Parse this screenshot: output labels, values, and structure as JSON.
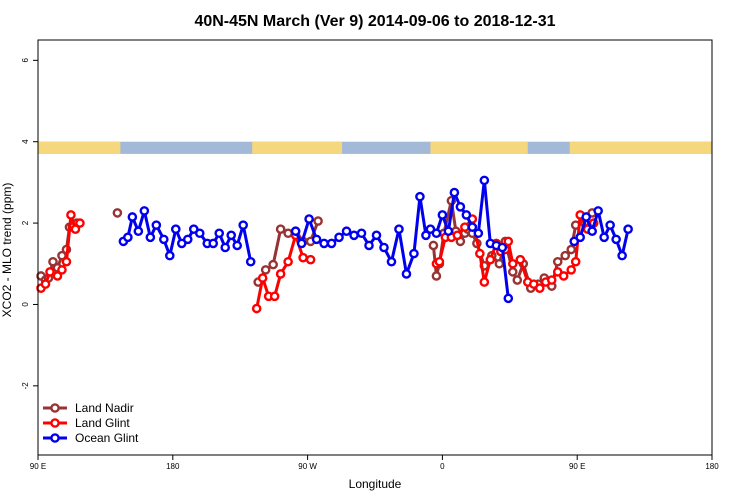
{
  "chart_data": {
    "type": "line",
    "title": "40N-45N March (Ver 9)   2014-09-06 to 2018-12-31",
    "xlabel": "Longitude",
    "ylabel": "XCO2 - MLO trend (ppm)",
    "xlim": [
      90,
      540
    ],
    "ylim": [
      -3.7,
      6.5
    ],
    "x_ticks": [
      {
        "value": 90,
        "label": "90 E"
      },
      {
        "value": 180,
        "label": "180"
      },
      {
        "value": 270,
        "label": "90 W"
      },
      {
        "value": 360,
        "label": "0"
      },
      {
        "value": 450,
        "label": "90 E"
      },
      {
        "value": 540,
        "label": "180"
      }
    ],
    "y_ticks": [
      {
        "value": -2,
        "label": "-2"
      },
      {
        "value": 0,
        "label": "0"
      },
      {
        "value": 2,
        "label": "2"
      },
      {
        "value": 4,
        "label": "4"
      },
      {
        "value": 6,
        "label": "6"
      }
    ],
    "land_ocean_bar": {
      "y_range": [
        3.7,
        4.0
      ],
      "ocean_color": "#a3b9d8",
      "land_color": "#f5d77e",
      "land_segments": [
        [
          90,
          145
        ],
        [
          233,
          293
        ],
        [
          352,
          417
        ],
        [
          445,
          540
        ]
      ]
    },
    "legend_position": "bottom-left",
    "series": [
      {
        "name": "Land Nadir",
        "color": "#993333",
        "points": [
          [
            92,
            0.7
          ],
          [
            95,
            0.6
          ],
          [
            97,
            0.65
          ],
          [
            100,
            1.05
          ],
          [
            103,
            0.9
          ],
          [
            106,
            1.2
          ],
          [
            109,
            1.35
          ],
          [
            111,
            1.9
          ],
          [
            113,
            1.9
          ],
          [
            116,
            2.0
          ],
          [
            143,
            2.25
          ],
          [
            237,
            0.55
          ],
          [
            242,
            0.85
          ],
          [
            247,
            0.98
          ],
          [
            252,
            1.85
          ],
          [
            257,
            1.75
          ],
          [
            262,
            1.8
          ],
          [
            267,
            1.55
          ],
          [
            272,
            1.55
          ],
          [
            277,
            2.05
          ],
          [
            354,
            1.45
          ],
          [
            356,
            0.7
          ],
          [
            358,
            1.0
          ],
          [
            361,
            1.75
          ],
          [
            366,
            2.55
          ],
          [
            369,
            1.8
          ],
          [
            372,
            1.55
          ],
          [
            375,
            1.75
          ],
          [
            377,
            1.85
          ],
          [
            380,
            1.75
          ],
          [
            383,
            1.5
          ],
          [
            388,
            0.95
          ],
          [
            393,
            1.2
          ],
          [
            398,
            1.0
          ],
          [
            402,
            1.55
          ],
          [
            407,
            0.8
          ],
          [
            410,
            0.6
          ],
          [
            414,
            1.0
          ],
          [
            419,
            0.4
          ],
          [
            424,
            0.5
          ],
          [
            428,
            0.65
          ],
          [
            433,
            0.45
          ],
          [
            437,
            1.05
          ],
          [
            442,
            1.2
          ],
          [
            446,
            1.35
          ],
          [
            449,
            1.95
          ],
          [
            455,
            2.0
          ],
          [
            460,
            2.25
          ]
        ]
      },
      {
        "name": "Land Glint",
        "color": "#ff0000",
        "points": [
          [
            92,
            0.4
          ],
          [
            95,
            0.5
          ],
          [
            98,
            0.8
          ],
          [
            103,
            0.7
          ],
          [
            106,
            0.85
          ],
          [
            109,
            1.05
          ],
          [
            112,
            2.2
          ],
          [
            115,
            1.85
          ],
          [
            118,
            2.0
          ],
          [
            236,
            -0.1
          ],
          [
            240,
            0.65
          ],
          [
            244,
            0.2
          ],
          [
            248,
            0.2
          ],
          [
            252,
            0.75
          ],
          [
            257,
            1.05
          ],
          [
            262,
            1.7
          ],
          [
            267,
            1.15
          ],
          [
            272,
            1.1
          ],
          [
            356,
            1.0
          ],
          [
            358,
            1.05
          ],
          [
            362,
            1.65
          ],
          [
            366,
            1.65
          ],
          [
            370,
            1.7
          ],
          [
            375,
            1.9
          ],
          [
            380,
            2.1
          ],
          [
            385,
            1.25
          ],
          [
            388,
            0.55
          ],
          [
            392,
            1.1
          ],
          [
            396,
            1.5
          ],
          [
            399,
            1.3
          ],
          [
            402,
            1.35
          ],
          [
            404,
            1.55
          ],
          [
            407,
            1.0
          ],
          [
            412,
            1.1
          ],
          [
            417,
            0.55
          ],
          [
            421,
            0.5
          ],
          [
            425,
            0.4
          ],
          [
            429,
            0.55
          ],
          [
            433,
            0.6
          ],
          [
            437,
            0.8
          ],
          [
            441,
            0.7
          ],
          [
            446,
            0.85
          ],
          [
            449,
            1.05
          ],
          [
            452,
            2.2
          ],
          [
            457,
            1.85
          ],
          [
            461,
            2.0
          ]
        ]
      },
      {
        "name": "Ocean Glint",
        "color": "#0000ee",
        "points": [
          [
            147,
            1.55
          ],
          [
            150,
            1.65
          ],
          [
            153,
            2.15
          ],
          [
            157,
            1.8
          ],
          [
            161,
            2.3
          ],
          [
            165,
            1.65
          ],
          [
            169,
            1.95
          ],
          [
            174,
            1.6
          ],
          [
            178,
            1.2
          ],
          [
            182,
            1.85
          ],
          [
            186,
            1.5
          ],
          [
            190,
            1.6
          ],
          [
            194,
            1.85
          ],
          [
            198,
            1.75
          ],
          [
            203,
            1.5
          ],
          [
            207,
            1.5
          ],
          [
            211,
            1.75
          ],
          [
            215,
            1.4
          ],
          [
            219,
            1.7
          ],
          [
            223,
            1.45
          ],
          [
            227,
            1.95
          ],
          [
            232,
            1.05
          ],
          [
            262,
            1.8
          ],
          [
            266,
            1.5
          ],
          [
            271,
            2.1
          ],
          [
            276,
            1.6
          ],
          [
            281,
            1.5
          ],
          [
            286,
            1.5
          ],
          [
            291,
            1.65
          ],
          [
            296,
            1.8
          ],
          [
            301,
            1.7
          ],
          [
            306,
            1.75
          ],
          [
            311,
            1.45
          ],
          [
            316,
            1.7
          ],
          [
            321,
            1.4
          ],
          [
            326,
            1.05
          ],
          [
            331,
            1.85
          ],
          [
            336,
            0.75
          ],
          [
            341,
            1.25
          ],
          [
            345,
            2.65
          ],
          [
            349,
            1.7
          ],
          [
            352,
            1.85
          ],
          [
            356,
            1.75
          ],
          [
            360,
            2.2
          ],
          [
            364,
            1.8
          ],
          [
            368,
            2.75
          ],
          [
            372,
            2.4
          ],
          [
            376,
            2.2
          ],
          [
            380,
            1.9
          ],
          [
            384,
            1.75
          ],
          [
            388,
            3.05
          ],
          [
            392,
            1.5
          ],
          [
            396,
            1.45
          ],
          [
            400,
            1.4
          ],
          [
            404,
            0.15
          ],
          [
            448,
            1.55
          ],
          [
            452,
            1.65
          ],
          [
            456,
            2.15
          ],
          [
            460,
            1.8
          ],
          [
            464,
            2.3
          ],
          [
            468,
            1.65
          ],
          [
            472,
            1.95
          ],
          [
            476,
            1.6
          ],
          [
            480,
            1.2
          ],
          [
            484,
            1.85
          ]
        ]
      }
    ]
  }
}
